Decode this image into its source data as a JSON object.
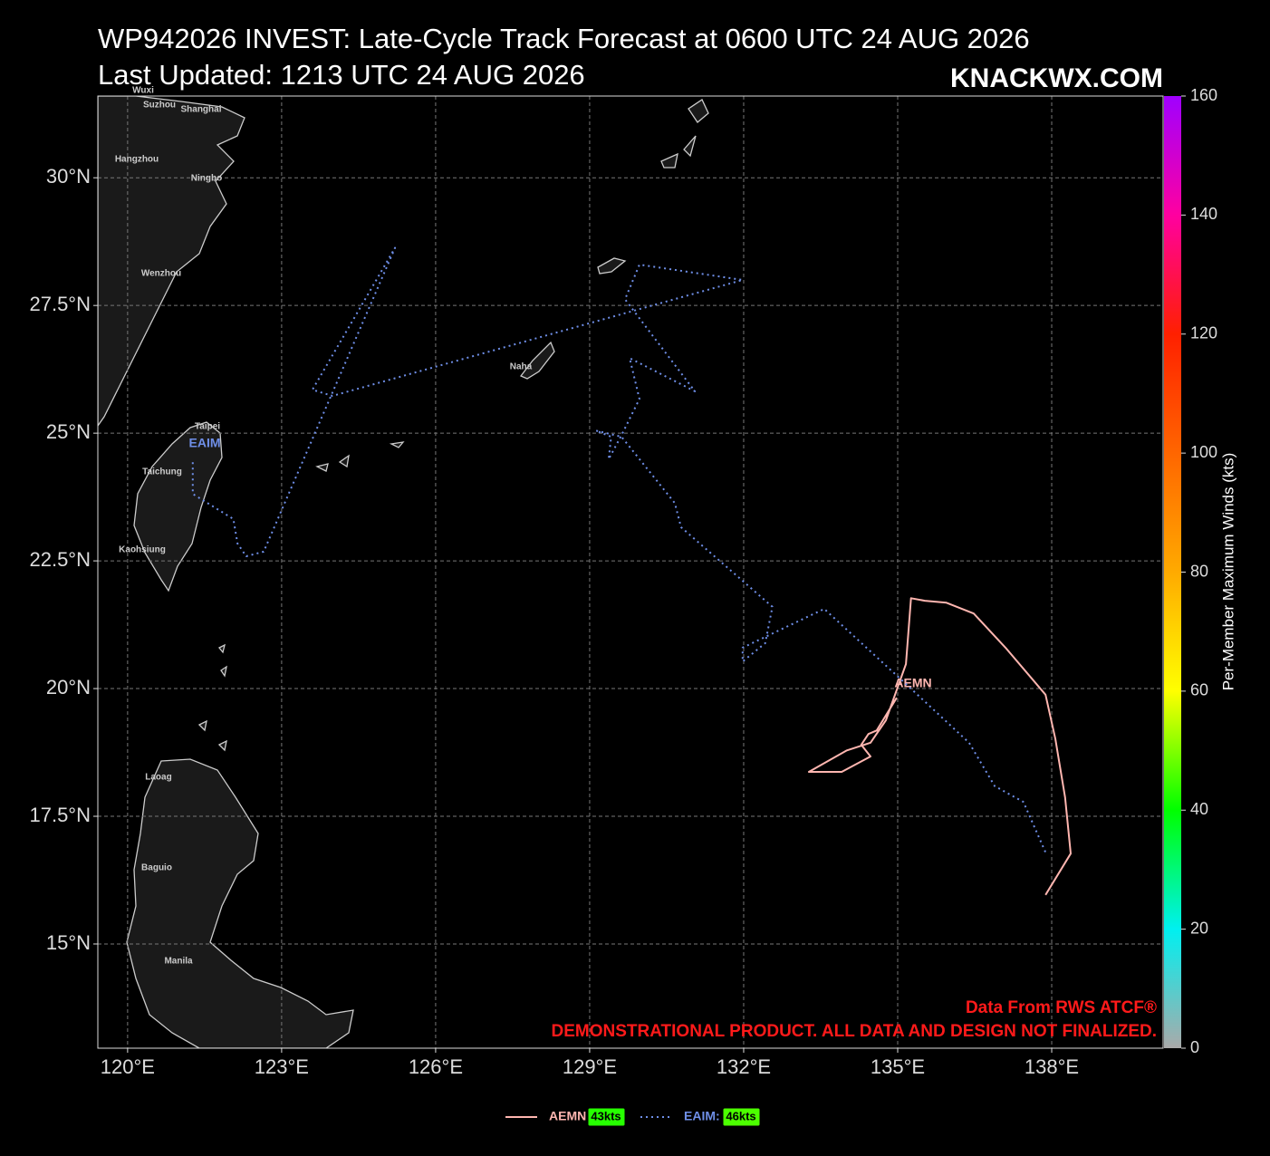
{
  "chart_data": {
    "type": "track",
    "title": "WP942026 INVEST: Late-Cycle Track Forecast at 0600 UTC 24 AUG 2026",
    "subtitle": "Last Updated: 1213 UTC 24 AUG 2026",
    "brand": "KNACKWX.COM",
    "source": "Data From RWS ATCF®",
    "disclaimer": "DEMONSTRATIONAL PRODUCT. ALL DATA AND DESIGN NOT FINALIZED.",
    "xlim": [
      119.42,
      140.17
    ],
    "ylim": [
      12.96,
      31.6
    ],
    "xticks": [
      {
        "value": 120,
        "label": "120°E"
      },
      {
        "value": 123,
        "label": "123°E"
      },
      {
        "value": 126,
        "label": "126°E"
      },
      {
        "value": 129,
        "label": "129°E"
      },
      {
        "value": 132,
        "label": "132°E"
      },
      {
        "value": 135,
        "label": "135°E"
      },
      {
        "value": 138,
        "label": "138°E"
      }
    ],
    "yticks": [
      {
        "value": 15,
        "label": "15°N"
      },
      {
        "value": 17.5,
        "label": "17.5°N"
      },
      {
        "value": 20,
        "label": "20°N"
      },
      {
        "value": 22.5,
        "label": "22.5°N"
      },
      {
        "value": 25,
        "label": "25°N"
      },
      {
        "value": 27.5,
        "label": "27.5°N"
      },
      {
        "value": 30,
        "label": "30°N"
      }
    ],
    "grid": true,
    "places": [
      "Wuxi",
      "Suzhou",
      "Shanghai",
      "Hangzhou",
      "Ningbo",
      "Wenzhou",
      "Taipei",
      "Taichung",
      "Kaohsiung",
      "Naha",
      "Laoag",
      "Baguio",
      "Manila"
    ],
    "series": [
      {
        "name": "AEMN",
        "legend_label": "AEMN:",
        "color": "#ffb6b0",
        "line_style": "solid",
        "peak_wind": 43,
        "peak_wind_label": "43kts",
        "x": [
          134.98,
          134.59,
          134.43,
          134.29,
          134.47,
          133.91,
          133.27,
          134.01,
          134.47,
          134.77,
          135.16,
          135.26,
          135.53,
          135.95,
          136.48,
          137.1,
          137.88,
          138.07,
          138.26,
          138.37,
          137.88
        ],
        "y": [
          19.82,
          19.18,
          19.11,
          18.9,
          18.67,
          18.37,
          18.37,
          18.79,
          18.94,
          19.38,
          20.48,
          21.77,
          21.72,
          21.68,
          21.47,
          20.8,
          19.88,
          19.02,
          17.87,
          16.77,
          15.96
        ]
      },
      {
        "name": "EAIM",
        "legend_label": "EAIM:",
        "color": "#6f8fe8",
        "line_style": "dotted",
        "peak_wind": 46,
        "peak_wind_label": "46kts",
        "x": [
          121.27,
          121.27,
          122.06,
          122.14,
          122.31,
          122.65,
          125.21,
          123.6,
          123.99,
          131.98,
          129.97,
          129.69,
          131.05,
          129.78,
          129.97,
          129.62,
          129.37,
          129.42,
          129.12,
          129.62,
          130.66,
          130.78,
          132.56,
          132.42,
          131.98,
          131.98,
          133.57,
          135.16,
          136.39,
          136.89,
          137.45,
          137.89
        ],
        "y": [
          24.43,
          23.81,
          23.32,
          22.84,
          22.59,
          22.68,
          28.63,
          25.85,
          25.73,
          28.0,
          28.3,
          27.62,
          25.82,
          26.47,
          25.67,
          24.96,
          24.49,
          24.93,
          25.05,
          24.93,
          23.63,
          23.16,
          21.6,
          20.89,
          20.53,
          20.8,
          21.56,
          20.09,
          18.94,
          18.09,
          17.78,
          16.77
        ]
      }
    ],
    "colorbar": {
      "label": "Per-Member Maximum Winds (kts)",
      "ylim": [
        0,
        160
      ],
      "yticks": [
        0,
        20,
        40,
        60,
        80,
        100,
        120,
        140,
        160
      ],
      "colors": [
        "#aaaaaa",
        "#00f0f0",
        "#00ff00",
        "#ffff00",
        "#ffaa00",
        "#ff6600",
        "#ff2000",
        "#ff00a0",
        "#a000ff"
      ]
    }
  }
}
